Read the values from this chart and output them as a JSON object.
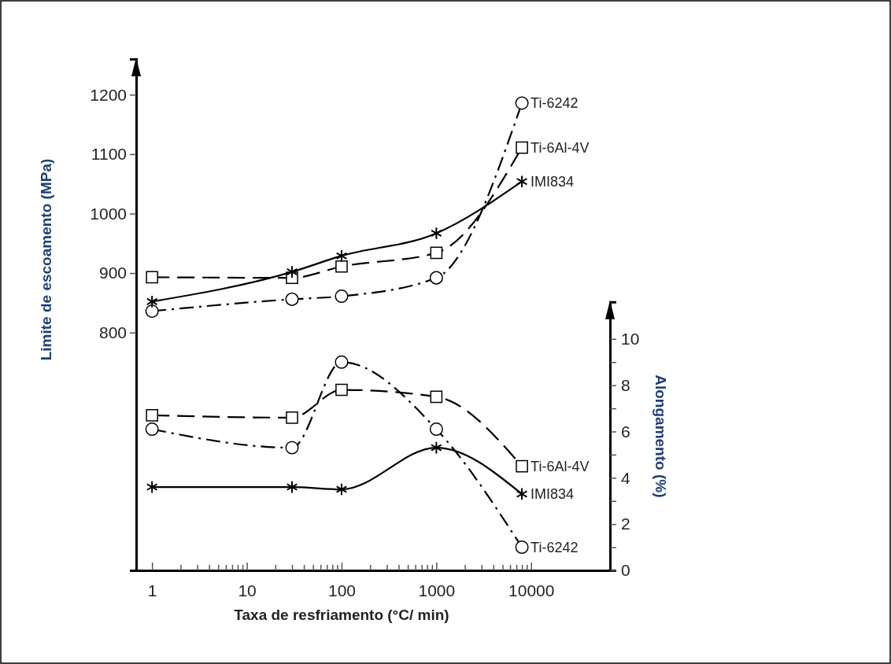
{
  "chart_data": {
    "type": "line",
    "xlabel": "Taxa de resfriamento (°C/ min)",
    "ylabel": "Limite de escoamento (MPa)",
    "y2label": "Alongamento (%)",
    "log": "x",
    "grid": false,
    "x": [
      1,
      30,
      100,
      1000,
      8000
    ],
    "xlim": [
      0.68,
      68000
    ],
    "xticks": [
      1,
      {
        "value": 2,
        "label": null
      },
      {
        "value": 3,
        "label": null
      },
      {
        "value": 4,
        "label": null
      },
      {
        "value": 5,
        "label": null
      },
      {
        "value": 6,
        "label": null
      },
      {
        "value": 7,
        "label": null
      },
      {
        "value": 8,
        "label": null
      },
      {
        "value": 9,
        "label": null
      },
      10,
      {
        "value": 20,
        "label": null
      },
      {
        "value": 30,
        "label": null
      },
      {
        "value": 40,
        "label": null
      },
      {
        "value": 50,
        "label": null
      },
      {
        "value": 60,
        "label": null
      },
      {
        "value": 70,
        "label": null
      },
      {
        "value": 80,
        "label": null
      },
      {
        "value": 90,
        "label": null
      },
      100,
      {
        "value": 200,
        "label": null
      },
      {
        "value": 300,
        "label": null
      },
      {
        "value": 400,
        "label": null
      },
      {
        "value": 500,
        "label": null
      },
      {
        "value": 600,
        "label": null
      },
      {
        "value": 700,
        "label": null
      },
      {
        "value": 800,
        "label": null
      },
      {
        "value": 900,
        "label": null
      },
      1000,
      {
        "value": 2000,
        "label": null
      },
      {
        "value": 3000,
        "label": null
      },
      {
        "value": 4000,
        "label": null
      },
      {
        "value": 5000,
        "label": null
      },
      {
        "value": 6000,
        "label": null
      },
      {
        "value": 7000,
        "label": null
      },
      {
        "value": 8000,
        "label": null
      },
      {
        "value": 9000,
        "label": null
      },
      10000
    ],
    "ylim": [
      400,
      1260
    ],
    "yticks": [
      800,
      900,
      1000,
      1100,
      1200
    ],
    "y2lim": [
      0,
      11.6
    ],
    "y2ticks": [
      0,
      {
        "value": 1,
        "label": null
      },
      2,
      {
        "value": 3,
        "label": null
      },
      4,
      {
        "value": 5,
        "label": null
      },
      6,
      {
        "value": 7,
        "label": null
      },
      8,
      {
        "value": 9,
        "label": null
      },
      10
    ],
    "series": [
      {
        "name": "Ti-6242",
        "color": "#000000",
        "marker": "circle",
        "line_style": "dashdot",
        "values": [
          836,
          856,
          861,
          892,
          1186
        ]
      },
      {
        "name": "Ti-6Al-4V",
        "color": "#000000",
        "marker": "square",
        "line_style": "dashed",
        "values": [
          893,
          892,
          911,
          934,
          1111
        ]
      },
      {
        "name": "IMI834",
        "color": "#000000",
        "marker": "cross",
        "line_style": "solid",
        "values": [
          852,
          902,
          929,
          967,
          1054
        ]
      },
      {
        "name": "Ti-6Al-4V",
        "color": "#000000",
        "marker": "square",
        "line_style": "dashed",
        "axis": "y2",
        "values": [
          6.7,
          6.6,
          7.8,
          7.5,
          4.5
        ]
      },
      {
        "name": "IMI834",
        "color": "#000000",
        "marker": "cross",
        "line_style": "solid",
        "axis": "y2",
        "values": [
          3.6,
          3.6,
          3.5,
          5.3,
          3.3
        ]
      },
      {
        "name": "Ti-6242",
        "color": "#000000",
        "marker": "circle",
        "line_style": "dashdot",
        "axis": "y2",
        "values": [
          6.1,
          5.3,
          9.0,
          6.1,
          1.0
        ]
      }
    ]
  }
}
